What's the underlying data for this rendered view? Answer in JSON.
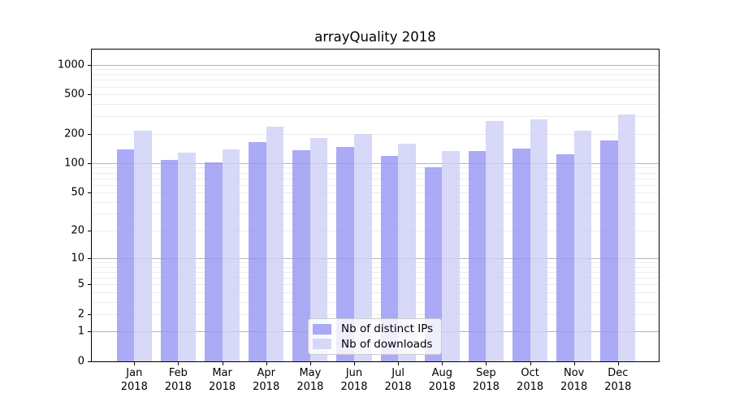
{
  "chart_data": {
    "type": "bar",
    "title": "arrayQuality 2018",
    "xlabel": "",
    "ylabel": "",
    "year": "2018",
    "categories": [
      "Jan",
      "Feb",
      "Mar",
      "Apr",
      "May",
      "Jun",
      "Jul",
      "Aug",
      "Sep",
      "Oct",
      "Nov",
      "Dec"
    ],
    "series": [
      {
        "name": "Nb of distinct IPs",
        "color": "rgba(149,149,244,0.8)",
        "color_hex_on_white": "#aaaaf6",
        "values": [
          138,
          107,
          102,
          164,
          136,
          145,
          119,
          91,
          134,
          141,
          122,
          171
        ]
      },
      {
        "name": "Nb of downloads",
        "color": "rgba(206,206,246,0.8)",
        "color_hex_on_white": "#d8d8f8",
        "values": [
          212,
          129,
          137,
          235,
          180,
          197,
          159,
          134,
          269,
          279,
          212,
          312
        ]
      }
    ],
    "y_scale": "log1p",
    "y_ticks": [
      0,
      1,
      2,
      5,
      10,
      20,
      50,
      100,
      200,
      500,
      1000
    ],
    "ylim": [
      0,
      1400
    ],
    "grid": {
      "major_values": [
        1,
        10,
        100,
        1000
      ],
      "minor_values": [
        2,
        3,
        4,
        5,
        6,
        7,
        8,
        9,
        20,
        30,
        40,
        50,
        60,
        70,
        80,
        90,
        200,
        300,
        400,
        500,
        600,
        700,
        800,
        900
      ],
      "major_color": "#b4b4b4",
      "minor_color": "#ececec"
    },
    "legend_position": "lower center",
    "axis_color": "#000000",
    "legend_border_color": "#cccccc",
    "background_color": "#ffffff"
  }
}
